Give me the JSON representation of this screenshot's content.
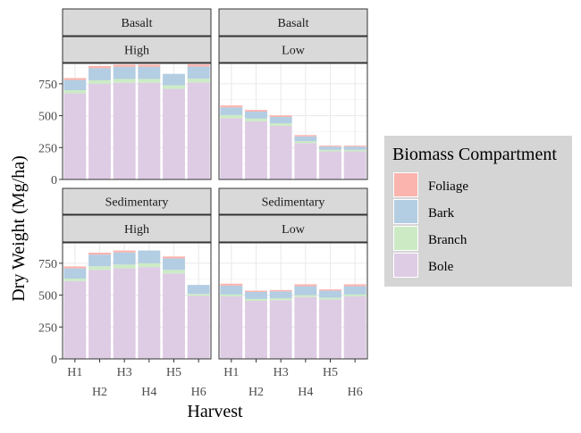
{
  "chart_data": {
    "type": "bar",
    "stacked": true,
    "faceted": true,
    "xlabel": "Harvest",
    "ylabel": "Dry Weight (Mg/ha)",
    "categories": [
      "H1",
      "H2",
      "H3",
      "H4",
      "H5",
      "H6"
    ],
    "yticks": [
      0,
      250,
      500,
      750
    ],
    "ylim": [
      0,
      910
    ],
    "grid": true,
    "legend": {
      "title": "Biomass Compartment",
      "position": "right",
      "entries": [
        {
          "name": "Foliage",
          "color": "#FBB4AE"
        },
        {
          "name": "Bark",
          "color": "#B3CDE3"
        },
        {
          "name": "Branch",
          "color": "#CCEBC5"
        },
        {
          "name": "Bole",
          "color": "#DECBE4"
        }
      ]
    },
    "series_order": [
      "Bole",
      "Branch",
      "Bark",
      "Foliage"
    ],
    "panels": [
      {
        "row_label": "Basalt",
        "col_label": "High",
        "series": [
          {
            "name": "Bole",
            "values": [
              675,
              750,
              758,
              758,
              710,
              760
            ]
          },
          {
            "name": "Branch",
            "values": [
              25,
              28,
              30,
              30,
              28,
              30
            ]
          },
          {
            "name": "Bark",
            "values": [
              80,
              95,
              95,
              95,
              90,
              95
            ]
          },
          {
            "name": "Foliage",
            "values": [
              15,
              17,
              17,
              17,
              0,
              17
            ]
          }
        ]
      },
      {
        "row_label": "Basalt",
        "col_label": "Low",
        "series": [
          {
            "name": "Bole",
            "values": [
              480,
              455,
              420,
              285,
              220,
              220
            ]
          },
          {
            "name": "Branch",
            "values": [
              25,
              22,
              20,
              15,
              12,
              12
            ]
          },
          {
            "name": "Bark",
            "values": [
              60,
              55,
              50,
              38,
              25,
              25
            ]
          },
          {
            "name": "Foliage",
            "values": [
              15,
              13,
              12,
              10,
              8,
              8
            ]
          }
        ]
      },
      {
        "row_label": "Sedimentary",
        "col_label": "High",
        "series": [
          {
            "name": "Bole",
            "values": [
              610,
              698,
              710,
              720,
              670,
              495
            ]
          },
          {
            "name": "Branch",
            "values": [
              20,
              28,
              30,
              30,
              28,
              15
            ]
          },
          {
            "name": "Bark",
            "values": [
              80,
              92,
              95,
              100,
              90,
              70
            ]
          },
          {
            "name": "Foliage",
            "values": [
              15,
              15,
              15,
              0,
              15,
              0
            ]
          }
        ]
      },
      {
        "row_label": "Sedimentary",
        "col_label": "Low",
        "series": [
          {
            "name": "Bole",
            "values": [
              490,
              455,
              460,
              485,
              465,
              490
            ]
          },
          {
            "name": "Branch",
            "values": [
              15,
              15,
              15,
              15,
              15,
              15
            ]
          },
          {
            "name": "Bark",
            "values": [
              70,
              55,
              55,
              70,
              55,
              65
            ]
          },
          {
            "name": "Foliage",
            "values": [
              15,
              10,
              10,
              15,
              10,
              15
            ]
          }
        ]
      }
    ]
  }
}
